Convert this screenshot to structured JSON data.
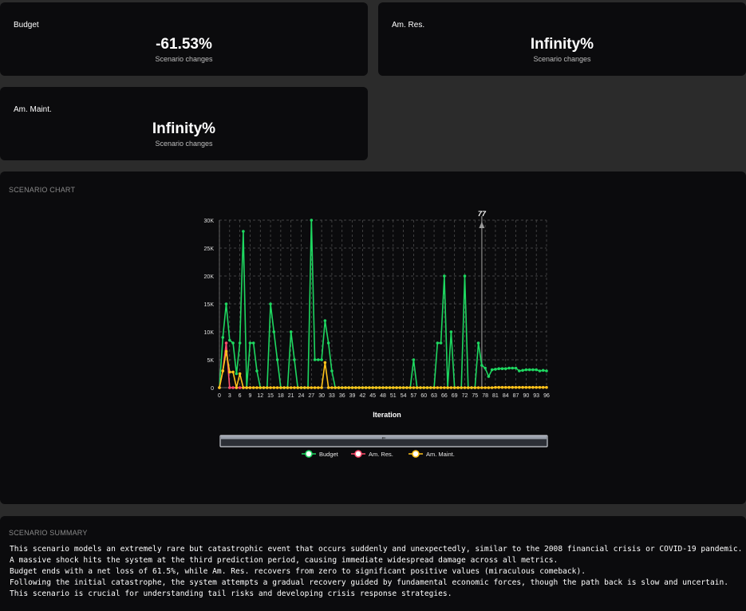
{
  "kpis": {
    "budget": {
      "label": "Budget",
      "value": "-61.53%",
      "sub": "Scenario changes"
    },
    "am_res": {
      "label": "Am. Res.",
      "value": "Infinity%",
      "sub": "Scenario changes"
    },
    "am_maint": {
      "label": "Am. Maint.",
      "value": "Infinity%",
      "sub": "Scenario changes"
    }
  },
  "chart_section": {
    "title": "SCENARIO CHART"
  },
  "chart_data": {
    "type": "line",
    "xlabel": "Iteration",
    "ylim": [
      0,
      30000
    ],
    "yticks": [
      "0",
      "5K",
      "10K",
      "15K",
      "20K",
      "25K",
      "30K"
    ],
    "xticks": [
      0,
      3,
      6,
      9,
      12,
      15,
      18,
      21,
      24,
      27,
      30,
      33,
      36,
      39,
      42,
      45,
      48,
      51,
      54,
      57,
      60,
      63,
      66,
      69,
      72,
      75,
      78,
      81,
      84,
      87,
      90,
      93,
      96
    ],
    "xmax": 96,
    "marker_label": "77",
    "marker_x": 77,
    "legend_position": "bottom",
    "series": [
      {
        "name": "Budget",
        "color": "#1ed760",
        "x": [
          0,
          1,
          2,
          3,
          4,
          5,
          6,
          7,
          8,
          9,
          10,
          11,
          12,
          13,
          14,
          15,
          16,
          17,
          18,
          19,
          20,
          21,
          22,
          23,
          24,
          25,
          26,
          27,
          28,
          29,
          30,
          31,
          32,
          33,
          34,
          35,
          36,
          37,
          38,
          39,
          40,
          41,
          42,
          43,
          44,
          45,
          46,
          47,
          48,
          49,
          50,
          51,
          52,
          53,
          54,
          55,
          56,
          57,
          58,
          59,
          60,
          61,
          62,
          63,
          64,
          65,
          66,
          67,
          68,
          69,
          70,
          71,
          72,
          73,
          74,
          75,
          76,
          77,
          78,
          79,
          80,
          81,
          82,
          83,
          84,
          85,
          86,
          87,
          88,
          89,
          90,
          91,
          92,
          93,
          94,
          95,
          96
        ],
        "values": [
          0,
          9000,
          15000,
          8500,
          8000,
          2500,
          8000,
          28000,
          0,
          8000,
          8000,
          3000,
          0,
          0,
          0,
          15000,
          10000,
          5000,
          0,
          0,
          0,
          10000,
          5000,
          0,
          0,
          0,
          0,
          30000,
          5000,
          5000,
          5000,
          12000,
          8000,
          3000,
          0,
          0,
          0,
          0,
          0,
          0,
          0,
          0,
          0,
          0,
          0,
          0,
          0,
          0,
          0,
          0,
          0,
          0,
          0,
          0,
          0,
          0,
          0,
          5000,
          0,
          0,
          0,
          0,
          0,
          0,
          8000,
          8000,
          20000,
          0,
          10000,
          0,
          0,
          0,
          20000,
          0,
          0,
          0,
          8000,
          4000,
          3500,
          2000,
          3200,
          3300,
          3400,
          3400,
          3400,
          3500,
          3500,
          3500,
          3000,
          3100,
          3200,
          3200,
          3200,
          3200,
          3000,
          3100,
          3000
        ]
      },
      {
        "name": "Am. Res.",
        "color": "#ff4d6d",
        "x": [
          0,
          1,
          2,
          3,
          4,
          5,
          6,
          7,
          8,
          9
        ],
        "values": [
          0,
          3000,
          8000,
          0,
          0,
          0,
          0,
          0,
          0,
          0
        ]
      },
      {
        "name": "Am. Maint.",
        "color": "#ffc21a",
        "x": [
          0,
          1,
          2,
          3,
          4,
          5,
          6,
          7,
          8,
          9,
          10,
          11,
          12,
          13,
          14,
          15,
          16,
          17,
          18,
          19,
          20,
          21,
          22,
          23,
          24,
          25,
          26,
          27,
          28,
          29,
          30,
          31,
          32,
          33,
          34,
          35,
          36,
          37,
          38,
          39,
          40,
          41,
          42,
          43,
          44,
          45,
          46,
          47,
          48,
          49,
          50,
          51,
          52,
          53,
          54,
          55,
          56,
          57,
          58,
          59,
          60,
          61,
          62,
          63,
          64,
          65,
          66,
          67,
          68,
          69,
          70,
          71,
          72,
          73,
          74,
          75,
          76,
          77,
          78,
          79,
          80,
          81,
          82,
          83,
          84,
          85,
          86,
          87,
          88,
          89,
          90,
          91,
          92,
          93,
          94,
          95,
          96
        ],
        "values": [
          0,
          3000,
          6500,
          2800,
          2800,
          0,
          2500,
          0,
          0,
          0,
          0,
          0,
          0,
          0,
          0,
          0,
          0,
          0,
          0,
          0,
          0,
          0,
          0,
          0,
          0,
          0,
          0,
          0,
          0,
          0,
          0,
          4500,
          0,
          0,
          0,
          0,
          0,
          0,
          0,
          0,
          0,
          0,
          0,
          0,
          0,
          0,
          0,
          0,
          0,
          0,
          0,
          0,
          0,
          0,
          0,
          0,
          0,
          0,
          0,
          0,
          0,
          0,
          0,
          0,
          0,
          0,
          0,
          0,
          0,
          0,
          0,
          0,
          0,
          0,
          0,
          0,
          0,
          0,
          0,
          0,
          0,
          50,
          50,
          50,
          50,
          50,
          50,
          50,
          50,
          50,
          50,
          50,
          50,
          50,
          50,
          50,
          50
        ]
      }
    ]
  },
  "slider": {
    "handle_glyph": "⇐"
  },
  "summary": {
    "title": "SCENARIO SUMMARY",
    "lines": [
      "This scenario models an extremely rare but catastrophic event that occurs suddenly and unexpectedly, similar to the 2008 financial crisis or COVID-19 pandemic.",
      "A massive shock hits the system at the third prediction period, causing immediate widespread damage across all metrics.",
      "Budget ends with a net loss of 61.5%, while Am. Res. recovers from zero to significant positive values (miraculous comeback).",
      "Following the initial catastrophe, the system attempts a gradual recovery guided by fundamental economic forces, though the path back is slow and uncertain.",
      "This scenario is crucial for understanding tail risks and developing crisis response strategies."
    ]
  }
}
